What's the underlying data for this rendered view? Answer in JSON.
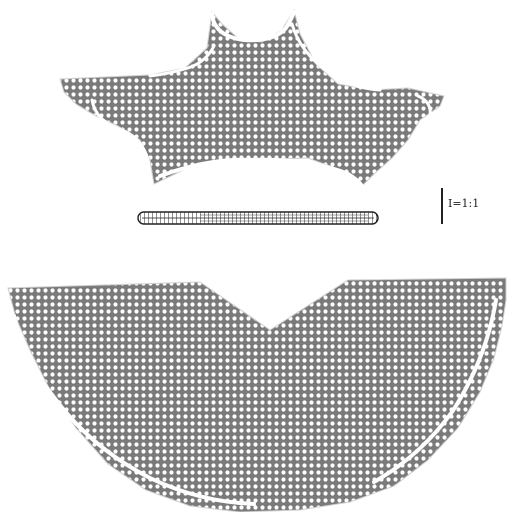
{
  "diagram": {
    "pieces": [
      {
        "name": "upper-pattern-piece",
        "fill": "stippled-grey"
      },
      {
        "name": "rod-piece",
        "fill": "striped-outline"
      },
      {
        "name": "lower-pattern-piece",
        "fill": "stippled-grey"
      }
    ],
    "scale_bar": {
      "label": "I=1:1"
    },
    "colors": {
      "dot_field": "#7a7a7a",
      "dot": "#ffffff",
      "rim": "#ffffff",
      "ink": "#222222",
      "background": "#ffffff"
    }
  }
}
